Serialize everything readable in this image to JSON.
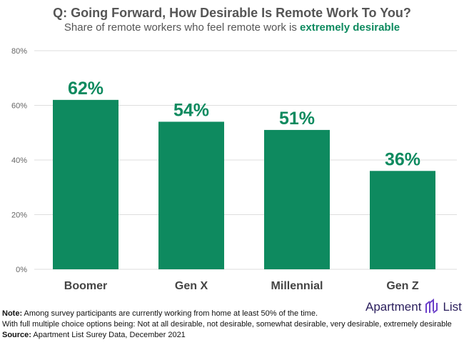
{
  "chart_data": {
    "type": "bar",
    "title": "Q: Going Forward, How Desirable Is Remote Work To You?",
    "subtitle_prefix": "Share of remote workers who feel remote work is ",
    "subtitle_highlight": "extremely desirable",
    "categories": [
      "Boomer",
      "Gen X",
      "Millennial",
      "Gen Z"
    ],
    "values": [
      62,
      54,
      51,
      36
    ],
    "data_labels": [
      "62%",
      "54%",
      "51%",
      "36%"
    ],
    "yticks": [
      0,
      20,
      40,
      60,
      80
    ],
    "ytick_labels": [
      "0%",
      "20%",
      "40%",
      "60%",
      "80%"
    ],
    "ylim": [
      0,
      80
    ],
    "xlabel": "",
    "ylabel": "",
    "grid": true,
    "bar_color": "#0e8a5f"
  },
  "notes": {
    "note_label": "Note:",
    "note_text": " Among survey participants are currently working from home at least 50% of the time.",
    "options_text": "With full multiple choice options being: Not at all desirable, not desirable, somewhat desirable, very desirable, extremely desirable",
    "source_label": "Source:",
    "source_text": " Apartment List Surey Data, December 2021"
  },
  "logo": {
    "left": "Apartment",
    "right": "List"
  }
}
